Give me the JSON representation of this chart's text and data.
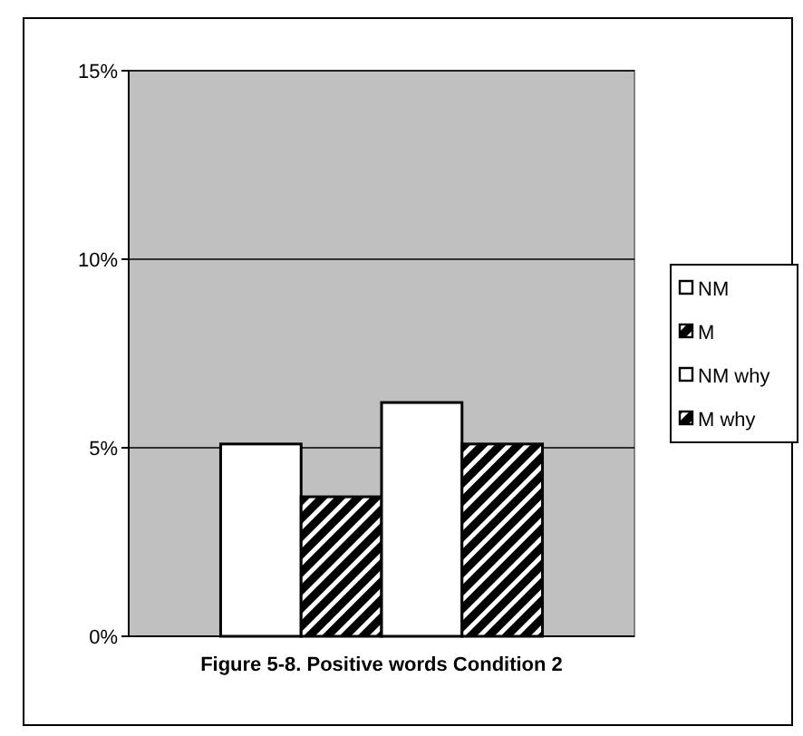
{
  "chart_data": {
    "type": "bar",
    "title": "Figure 5-8. Positive words Condition 2",
    "categories": [
      null
    ],
    "series": [
      {
        "name": "NM",
        "color": "#ffffff",
        "values": [
          5.1
        ]
      },
      {
        "name": "M",
        "color": "#000000",
        "values": [
          3.7
        ]
      },
      {
        "name": "NM why",
        "color": "#ffffff",
        "values": [
          6.2
        ]
      },
      {
        "name": "M why",
        "color": "#000000",
        "values": [
          5.1
        ]
      }
    ],
    "ylim": [
      0,
      15
    ],
    "yticks": [
      {
        "value": 0,
        "label": "0%"
      },
      {
        "value": 5,
        "label": "5%"
      },
      {
        "value": 10,
        "label": "10%"
      },
      {
        "value": 15,
        "label": "15%"
      }
    ],
    "grid": "y",
    "legend": "right"
  }
}
